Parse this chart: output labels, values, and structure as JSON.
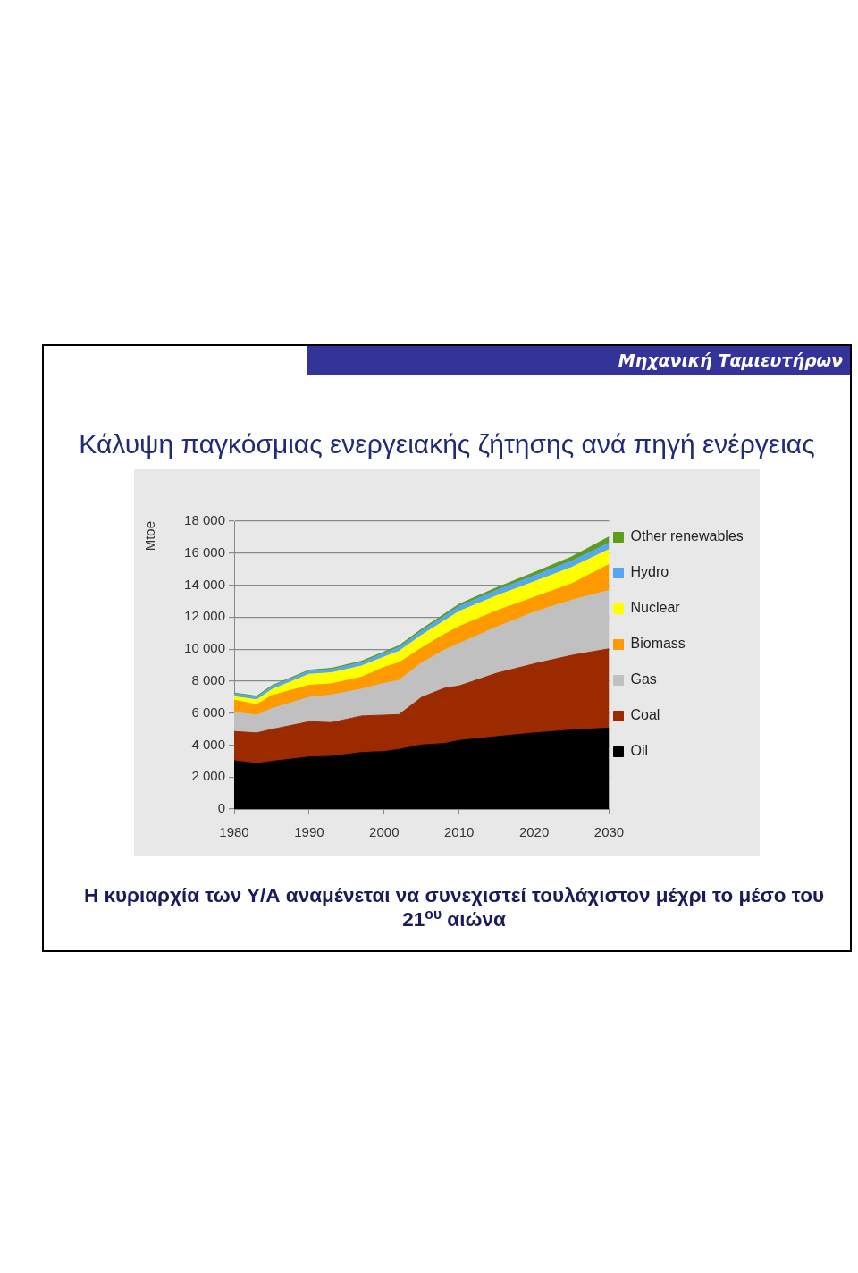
{
  "chart_data": {
    "type": "area",
    "title": "Κάλυψη παγκόσμιας ενεργειακής ζήτησης ανά πηγή ενέργειας",
    "ylabel": "Mtoe",
    "annotations": [
      "Μηχανική Ταμιευτήρων",
      "Η κυριαρχία των Υ/Α αναμένεται να συνεχιστεί τουλάχιστον μέχρι το μέσο του 21$^{ου}$ αιώνα"
    ],
    "x": [
      1980,
      1983,
      1985,
      1990,
      1993,
      1997,
      2000,
      2002,
      2005,
      2008,
      2010,
      2015,
      2020,
      2025,
      2030
    ],
    "series": [
      {
        "name": "Oil",
        "color": "#000000",
        "values": [
          3020,
          2850,
          2980,
          3260,
          3300,
          3540,
          3600,
          3730,
          4010,
          4100,
          4290,
          4530,
          4760,
          4940,
          5070
        ]
      },
      {
        "name": "Coal",
        "color": "#9c2a00",
        "values": [
          1830,
          1910,
          2000,
          2200,
          2110,
          2280,
          2270,
          2180,
          2980,
          3450,
          3410,
          3960,
          4320,
          4670,
          4950
        ]
      },
      {
        "name": "Gas",
        "color": "#c0c0c0",
        "values": [
          1210,
          1110,
          1300,
          1530,
          1730,
          1680,
          2000,
          2140,
          2150,
          2380,
          2650,
          2890,
          3230,
          3450,
          3650
        ]
      },
      {
        "name": "Biomass",
        "color": "#ff9900",
        "values": [
          750,
          660,
          810,
          750,
          690,
          750,
          990,
          1100,
          930,
          980,
          1060,
          1020,
          930,
          1020,
          1620
        ]
      },
      {
        "name": "Nuclear",
        "color": "#ffff00",
        "values": [
          220,
          300,
          370,
          690,
          690,
          700,
          650,
          720,
          800,
          850,
          950,
          930,
          970,
          1030,
          940
        ]
      },
      {
        "name": "Hydro",
        "color": "#55a8f0",
        "values": [
          180,
          180,
          190,
          200,
          210,
          220,
          230,
          250,
          270,
          300,
          320,
          350,
          380,
          400,
          420
        ]
      },
      {
        "name": "Other renewables",
        "color": "#5e9c1c",
        "values": [
          50,
          50,
          60,
          60,
          70,
          80,
          90,
          100,
          110,
          120,
          130,
          160,
          200,
          260,
          370
        ]
      }
    ],
    "stacked": true,
    "xlim": [
      1980,
      2030
    ],
    "xticks": [
      1980,
      1990,
      2000,
      2010,
      2020,
      2030
    ],
    "ylim": [
      0,
      18000
    ],
    "yticks": [
      0,
      {
        "value": 2000,
        "label": "2 000"
      },
      {
        "value": 4000,
        "label": "4 000"
      },
      {
        "value": 6000,
        "label": "6 000"
      },
      {
        "value": 8000,
        "label": "8 000"
      },
      {
        "value": 10000,
        "label": "10 000"
      },
      {
        "value": 12000,
        "label": "12 000"
      },
      {
        "value": 14000,
        "label": "14 000"
      },
      {
        "value": 16000,
        "label": "16 000"
      },
      {
        "value": 18000,
        "label": "18 000"
      }
    ],
    "grid": "y",
    "legend": "right"
  }
}
